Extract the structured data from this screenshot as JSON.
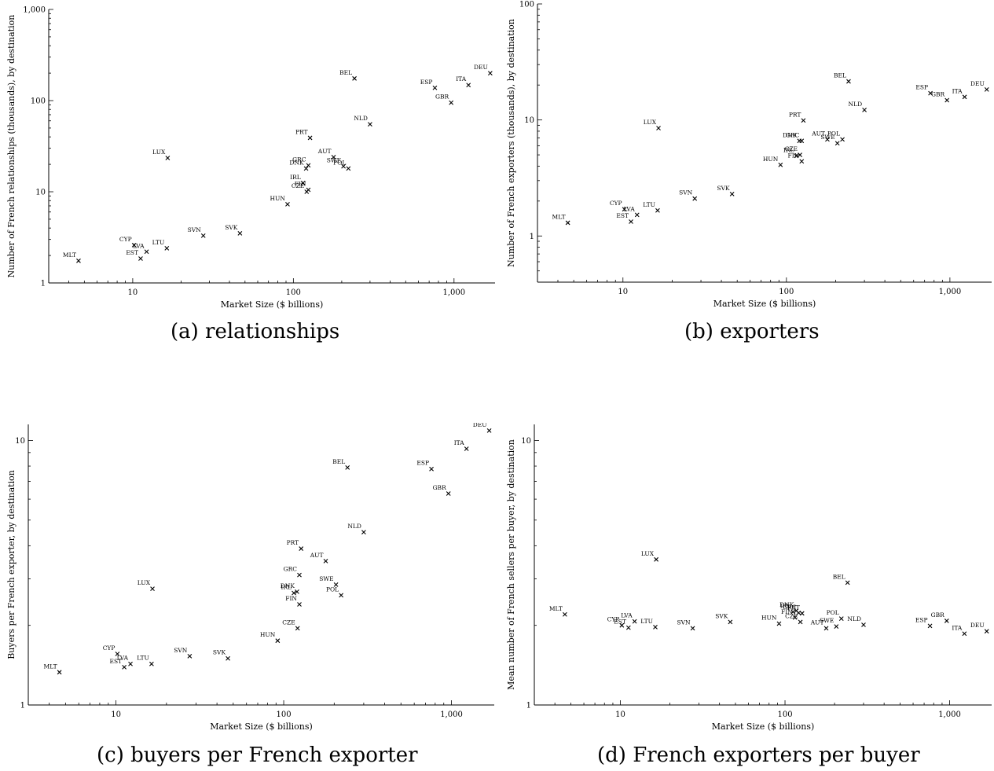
{
  "charts": [
    {
      "caption": "(a) relationships",
      "chart_data": {
        "type": "scatter",
        "xlabel": "Market Size ($ billions)",
        "ylabel": "Number of French relationships (thousands), by destination",
        "xscale": "log",
        "yscale": "log",
        "xlim": [
          3,
          1800
        ],
        "ylim": [
          1,
          1000
        ],
        "xticks": [
          10,
          100,
          1000
        ],
        "xtick_labels": [
          "10",
          "100",
          "1,000"
        ],
        "yticks": [
          1,
          10,
          100,
          1000
        ],
        "ytick_labels": [
          "1",
          "10",
          "100",
          "1,000"
        ],
        "points": [
          {
            "label": "MLT",
            "x": 4.6,
            "y": 1.75
          },
          {
            "label": "CYP",
            "x": 10.2,
            "y": 2.6
          },
          {
            "label": "LVA",
            "x": 12.2,
            "y": 2.2
          },
          {
            "label": "EST",
            "x": 11.2,
            "y": 1.85
          },
          {
            "label": "LTU",
            "x": 16.3,
            "y": 2.4
          },
          {
            "label": "LUX",
            "x": 16.5,
            "y": 23.5
          },
          {
            "label": "SVN",
            "x": 27.5,
            "y": 3.3
          },
          {
            "label": "SVK",
            "x": 46.5,
            "y": 3.5
          },
          {
            "label": "HUN",
            "x": 92,
            "y": 7.3
          },
          {
            "label": "IRL",
            "x": 115,
            "y": 12.5
          },
          {
            "label": "FIN",
            "x": 124,
            "y": 10.5
          },
          {
            "label": "CZE",
            "x": 121,
            "y": 10.0
          },
          {
            "label": "DNK",
            "x": 120,
            "y": 18
          },
          {
            "label": "GRC",
            "x": 124,
            "y": 19.5
          },
          {
            "label": "PRT",
            "x": 127,
            "y": 39
          },
          {
            "label": "AUT",
            "x": 178,
            "y": 24
          },
          {
            "label": "SWE",
            "x": 205,
            "y": 19
          },
          {
            "label": "POL",
            "x": 220,
            "y": 18
          },
          {
            "label": "BEL",
            "x": 240,
            "y": 175
          },
          {
            "label": "NLD",
            "x": 300,
            "y": 55
          },
          {
            "label": "ESP",
            "x": 760,
            "y": 138
          },
          {
            "label": "GBR",
            "x": 960,
            "y": 95
          },
          {
            "label": "ITA",
            "x": 1230,
            "y": 148
          },
          {
            "label": "DEU",
            "x": 1680,
            "y": 200
          }
        ]
      }
    },
    {
      "caption": "(b) exporters",
      "chart_data": {
        "type": "scatter",
        "xlabel": "Market Size ($ billions)",
        "ylabel": "Number of French exporters (thousands), by destination",
        "xscale": "log",
        "yscale": "log",
        "xlim": [
          3,
          1800
        ],
        "ylim": [
          0.4,
          100
        ],
        "xticks": [
          10,
          100,
          1000
        ],
        "xtick_labels": [
          "10",
          "100",
          "1,000"
        ],
        "yticks": [
          1,
          10,
          100
        ],
        "ytick_labels": [
          "1",
          "10",
          "100"
        ],
        "points": [
          {
            "label": "MLT",
            "x": 4.6,
            "y": 1.3
          },
          {
            "label": "CYP",
            "x": 10.2,
            "y": 1.7
          },
          {
            "label": "LVA",
            "x": 12.2,
            "y": 1.52
          },
          {
            "label": "EST",
            "x": 11.2,
            "y": 1.33
          },
          {
            "label": "LTU",
            "x": 16.3,
            "y": 1.66
          },
          {
            "label": "LUX",
            "x": 16.5,
            "y": 8.5
          },
          {
            "label": "SVN",
            "x": 27.5,
            "y": 2.1
          },
          {
            "label": "SVK",
            "x": 46.5,
            "y": 2.3
          },
          {
            "label": "HUN",
            "x": 92,
            "y": 4.1
          },
          {
            "label": "IRL",
            "x": 115,
            "y": 4.9
          },
          {
            "label": "FIN",
            "x": 124,
            "y": 4.4
          },
          {
            "label": "CZE",
            "x": 121,
            "y": 5.0
          },
          {
            "label": "DNK",
            "x": 120,
            "y": 6.6
          },
          {
            "label": "GRC",
            "x": 124,
            "y": 6.6
          },
          {
            "label": "PRT",
            "x": 127,
            "y": 9.9
          },
          {
            "label": "AUT",
            "x": 178,
            "y": 6.8
          },
          {
            "label": "SWE",
            "x": 205,
            "y": 6.3
          },
          {
            "label": "POL",
            "x": 220,
            "y": 6.8
          },
          {
            "label": "BEL",
            "x": 240,
            "y": 21.5
          },
          {
            "label": "NLD",
            "x": 300,
            "y": 12.2
          },
          {
            "label": "ESP",
            "x": 760,
            "y": 17
          },
          {
            "label": "GBR",
            "x": 960,
            "y": 14.8
          },
          {
            "label": "ITA",
            "x": 1230,
            "y": 15.8
          },
          {
            "label": "DEU",
            "x": 1680,
            "y": 18.3
          }
        ]
      }
    },
    {
      "caption": "(c) buyers per French exporter",
      "chart_data": {
        "type": "scatter",
        "xlabel": "Market Size ($ billions)",
        "ylabel": "Buyers per French exporter, by destination",
        "xscale": "log",
        "yscale": "log",
        "xlim": [
          3,
          1800
        ],
        "ylim": [
          1,
          11.5
        ],
        "xticks": [
          10,
          100,
          1000
        ],
        "xtick_labels": [
          "10",
          "100",
          "1,000"
        ],
        "yticks": [
          1,
          10
        ],
        "ytick_labels": [
          "1",
          "10"
        ],
        "points": [
          {
            "label": "MLT",
            "x": 4.6,
            "y": 1.33
          },
          {
            "label": "CYP",
            "x": 10.2,
            "y": 1.56
          },
          {
            "label": "LVA",
            "x": 12.2,
            "y": 1.43
          },
          {
            "label": "EST",
            "x": 11.2,
            "y": 1.39
          },
          {
            "label": "LTU",
            "x": 16.3,
            "y": 1.43
          },
          {
            "label": "LUX",
            "x": 16.5,
            "y": 2.75
          },
          {
            "label": "SVN",
            "x": 27.5,
            "y": 1.53
          },
          {
            "label": "SVK",
            "x": 46.5,
            "y": 1.5
          },
          {
            "label": "HUN",
            "x": 92,
            "y": 1.75
          },
          {
            "label": "IRL",
            "x": 115,
            "y": 2.65
          },
          {
            "label": "DNK",
            "x": 120,
            "y": 2.68
          },
          {
            "label": "FIN",
            "x": 124,
            "y": 2.4
          },
          {
            "label": "CZE",
            "x": 121,
            "y": 1.95
          },
          {
            "label": "GRC",
            "x": 124,
            "y": 3.1
          },
          {
            "label": "PRT",
            "x": 127,
            "y": 3.9
          },
          {
            "label": "AUT",
            "x": 178,
            "y": 3.5
          },
          {
            "label": "SWE",
            "x": 205,
            "y": 2.85
          },
          {
            "label": "POL",
            "x": 220,
            "y": 2.6
          },
          {
            "label": "BEL",
            "x": 240,
            "y": 7.9
          },
          {
            "label": "NLD",
            "x": 300,
            "y": 4.5
          },
          {
            "label": "ESP",
            "x": 760,
            "y": 7.8
          },
          {
            "label": "GBR",
            "x": 960,
            "y": 6.3
          },
          {
            "label": "ITA",
            "x": 1230,
            "y": 9.3
          },
          {
            "label": "DEU",
            "x": 1680,
            "y": 10.9
          }
        ]
      }
    },
    {
      "caption": "(d) French exporters per buyer",
      "chart_data": {
        "type": "scatter",
        "xlabel": "Market Size ($ billions)",
        "ylabel": "Mean number of French sellers per buyer, by destination",
        "xscale": "log",
        "yscale": "log",
        "xlim": [
          3,
          1800
        ],
        "ylim": [
          1,
          11.5
        ],
        "xticks": [
          10,
          100,
          1000
        ],
        "xtick_labels": [
          "10",
          "100",
          "1,000"
        ],
        "yticks": [
          1,
          10
        ],
        "ytick_labels": [
          "1",
          "10"
        ],
        "points": [
          {
            "label": "MLT",
            "x": 4.6,
            "y": 2.2
          },
          {
            "label": "CYP",
            "x": 10.2,
            "y": 2.0
          },
          {
            "label": "LVA",
            "x": 12.2,
            "y": 2.07
          },
          {
            "label": "EST",
            "x": 11.2,
            "y": 1.96
          },
          {
            "label": "LTU",
            "x": 16.3,
            "y": 1.97
          },
          {
            "label": "LUX",
            "x": 16.5,
            "y": 3.55
          },
          {
            "label": "SVN",
            "x": 27.5,
            "y": 1.95
          },
          {
            "label": "SVK",
            "x": 46.5,
            "y": 2.06
          },
          {
            "label": "HUN",
            "x": 92,
            "y": 2.03
          },
          {
            "label": "IRL",
            "x": 112,
            "y": 2.25
          },
          {
            "label": "DNK",
            "x": 117,
            "y": 2.27
          },
          {
            "label": "PRT",
            "x": 127,
            "y": 2.22
          },
          {
            "label": "GRC",
            "x": 121,
            "y": 2.23
          },
          {
            "label": "FIN",
            "x": 115,
            "y": 2.14
          },
          {
            "label": "CZE",
            "x": 124,
            "y": 2.06
          },
          {
            "label": "AUT",
            "x": 178,
            "y": 1.95
          },
          {
            "label": "SWE",
            "x": 205,
            "y": 1.98
          },
          {
            "label": "POL",
            "x": 220,
            "y": 2.12
          },
          {
            "label": "BEL",
            "x": 240,
            "y": 2.9
          },
          {
            "label": "NLD",
            "x": 300,
            "y": 2.01
          },
          {
            "label": "ESP",
            "x": 760,
            "y": 1.99
          },
          {
            "label": "GBR",
            "x": 960,
            "y": 2.08
          },
          {
            "label": "ITA",
            "x": 1230,
            "y": 1.86
          },
          {
            "label": "DEU",
            "x": 1680,
            "y": 1.9
          }
        ]
      }
    }
  ]
}
